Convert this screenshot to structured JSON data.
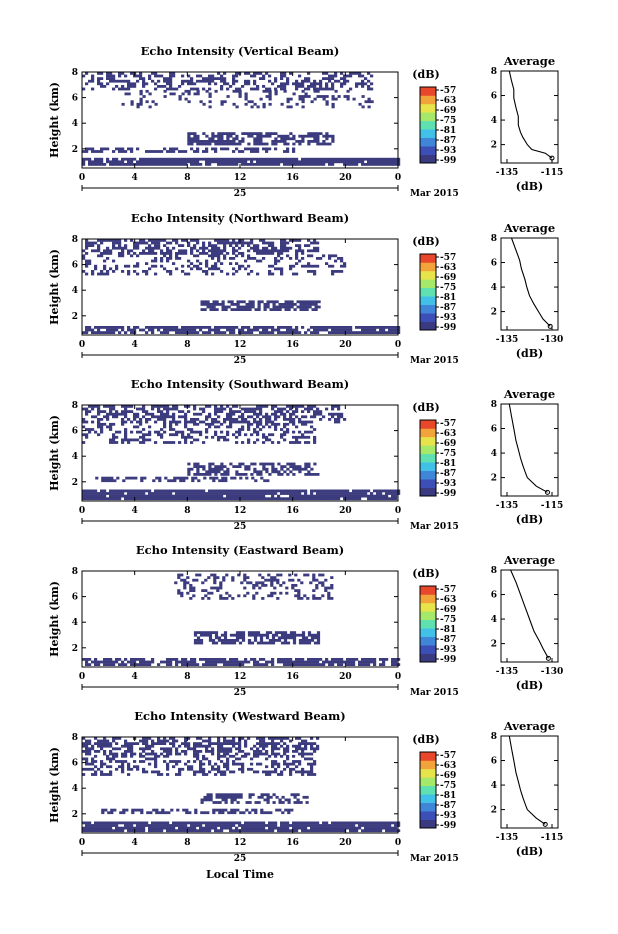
{
  "colors": {
    "echo": "#3b3b7e",
    "colorbar": [
      "#393a80",
      "#3c4fb8",
      "#3f86d8",
      "#41c1e8",
      "#5fe0b0",
      "#a6e86a",
      "#e6e44a",
      "#f2a43a",
      "#e8472b"
    ]
  },
  "shared": {
    "colorbar_unit": "(dB)",
    "colorbar_ticks": [
      "-57",
      "-63",
      "-69",
      "-75",
      "-81",
      "-87",
      "-93",
      "-99"
    ],
    "height_label": "Height (km)",
    "height_ticks": [
      "2",
      "4",
      "6",
      "8"
    ],
    "time_ticks": [
      "0",
      "4",
      "8",
      "12",
      "16",
      "20",
      "0"
    ],
    "date_day": "25",
    "date_month": "Mar 2015",
    "avg_title": "Average",
    "avg_unit": "(dB)",
    "xlabel_bottom": "Local Time"
  },
  "panels": [
    {
      "title": "Echo Intensity (Vertical Beam)",
      "avg_ticks": [
        "-135",
        "-115"
      ]
    },
    {
      "title": "Echo Intensity (Northward Beam)",
      "avg_ticks": [
        "-135",
        "-130"
      ]
    },
    {
      "title": "Echo Intensity (Southward Beam)",
      "avg_ticks": [
        "-135",
        "-115"
      ]
    },
    {
      "title": "Echo Intensity (Eastward Beam)",
      "avg_ticks": [
        "-135",
        "-130"
      ]
    },
    {
      "title": "Echo Intensity (Westward Beam)",
      "avg_ticks": [
        "-135",
        "-115"
      ]
    }
  ],
  "chart_data": [
    {
      "type": "heatmap",
      "title": "Echo Intensity (Vertical Beam)",
      "ylabel": "Height (km)",
      "xlabel": "Local Time",
      "xlim": [
        0,
        24
      ],
      "ylim": [
        0.5,
        8
      ],
      "colorbar_range": [
        -99,
        -57
      ],
      "echo_layers": [
        {
          "h": [
            0.7,
            1.3
          ],
          "t": [
            0,
            24
          ],
          "density": 0.9
        },
        {
          "h": [
            1.8,
            2.1
          ],
          "t": [
            0,
            16
          ],
          "density": 0.55
        },
        {
          "h": [
            2.4,
            3.3
          ],
          "t": [
            8,
            19
          ],
          "density": 0.6
        },
        {
          "h": [
            5.2,
            6.6
          ],
          "t": [
            3,
            22
          ],
          "density": 0.22
        },
        {
          "h": [
            6.6,
            8.0
          ],
          "t": [
            0,
            22
          ],
          "density": 0.45
        }
      ],
      "profile": {
        "x_range": [
          -135,
          -115
        ],
        "x": [
          -134,
          -133,
          -132,
          -132,
          -131,
          -130,
          -130,
          -129,
          -128,
          -126,
          -124,
          -118,
          -115
        ],
        "h": [
          8,
          7.2,
          6.5,
          5.8,
          5,
          4.3,
          3.6,
          3,
          2.6,
          2,
          1.6,
          1.3,
          0.9
        ]
      }
    },
    {
      "type": "heatmap",
      "title": "Echo Intensity (Northward Beam)",
      "ylabel": "Height (km)",
      "xlabel": "Local Time",
      "xlim": [
        0,
        24
      ],
      "ylim": [
        0.5,
        8
      ],
      "colorbar_range": [
        -99,
        -57
      ],
      "echo_layers": [
        {
          "h": [
            0.7,
            1.2
          ],
          "t": [
            0,
            24
          ],
          "density": 0.75
        },
        {
          "h": [
            2.4,
            3.2
          ],
          "t": [
            9,
            18
          ],
          "density": 0.7
        },
        {
          "h": [
            5.2,
            6.8
          ],
          "t": [
            0,
            20
          ],
          "density": 0.28
        },
        {
          "h": [
            6.8,
            8.0
          ],
          "t": [
            0,
            18
          ],
          "density": 0.5
        }
      ],
      "profile": {
        "x_range": [
          -135,
          -130
        ],
        "x": [
          -134.5,
          -134,
          -133.6,
          -133.4,
          -133,
          -132.8,
          -132.5,
          -132,
          -131.5,
          -131,
          -130.2
        ],
        "h": [
          8,
          7,
          6.2,
          5.5,
          4.6,
          4,
          3.3,
          2.6,
          2,
          1.4,
          0.8
        ]
      }
    },
    {
      "type": "heatmap",
      "title": "Echo Intensity (Southward Beam)",
      "ylabel": "Height (km)",
      "xlabel": "Local Time",
      "xlim": [
        0,
        24
      ],
      "ylim": [
        0.5,
        8
      ],
      "colorbar_range": [
        -99,
        -57
      ],
      "echo_layers": [
        {
          "h": [
            0.7,
            1.4
          ],
          "t": [
            0,
            24
          ],
          "density": 0.9
        },
        {
          "h": [
            2.0,
            2.4
          ],
          "t": [
            1,
            14
          ],
          "density": 0.5
        },
        {
          "h": [
            2.6,
            3.5
          ],
          "t": [
            8,
            18
          ],
          "density": 0.55
        },
        {
          "h": [
            5.0,
            6.6
          ],
          "t": [
            0,
            18
          ],
          "density": 0.35
        },
        {
          "h": [
            6.6,
            8.0
          ],
          "t": [
            0,
            20
          ],
          "density": 0.55
        }
      ],
      "profile": {
        "x_range": [
          -135,
          -115
        ],
        "x": [
          -134,
          -133,
          -132,
          -131,
          -130,
          -129,
          -128,
          -127,
          -126,
          -122,
          -117
        ],
        "h": [
          8,
          7,
          6,
          5,
          4.3,
          3.6,
          3,
          2.5,
          2,
          1.3,
          0.8
        ]
      }
    },
    {
      "type": "heatmap",
      "title": "Echo Intensity (Eastward Beam)",
      "ylabel": "Height (km)",
      "xlabel": "Local Time",
      "xlim": [
        0,
        24
      ],
      "ylim": [
        0.5,
        8
      ],
      "colorbar_range": [
        -99,
        -57
      ],
      "echo_layers": [
        {
          "h": [
            0.7,
            1.2
          ],
          "t": [
            0,
            24
          ],
          "density": 0.75
        },
        {
          "h": [
            2.3,
            3.3
          ],
          "t": [
            8.5,
            18
          ],
          "density": 0.7
        },
        {
          "h": [
            5.8,
            7.8
          ],
          "t": [
            7,
            19
          ],
          "density": 0.28
        }
      ],
      "profile": {
        "x_range": [
          -135,
          -130
        ],
        "x": [
          -134.6,
          -134,
          -133.6,
          -133.2,
          -132.8,
          -132.4,
          -132,
          -131.4,
          -131,
          -130.4
        ],
        "h": [
          8,
          7,
          6.2,
          5.4,
          4.6,
          3.8,
          3,
          2.2,
          1.6,
          0.8
        ]
      }
    },
    {
      "type": "heatmap",
      "title": "Echo Intensity (Westward Beam)",
      "ylabel": "Height (km)",
      "xlabel": "Local Time",
      "xlim": [
        0,
        24
      ],
      "ylim": [
        0.5,
        8
      ],
      "colorbar_range": [
        -99,
        -57
      ],
      "echo_layers": [
        {
          "h": [
            0.7,
            1.4
          ],
          "t": [
            0,
            24
          ],
          "density": 0.9
        },
        {
          "h": [
            2.0,
            2.4
          ],
          "t": [
            1,
            16
          ],
          "density": 0.5
        },
        {
          "h": [
            2.8,
            3.6
          ],
          "t": [
            9,
            17
          ],
          "density": 0.55
        },
        {
          "h": [
            5.0,
            6.6
          ],
          "t": [
            0,
            18
          ],
          "density": 0.38
        },
        {
          "h": [
            6.6,
            8.0
          ],
          "t": [
            0,
            18
          ],
          "density": 0.55
        }
      ],
      "profile": {
        "x_range": [
          -135,
          -115
        ],
        "x": [
          -134,
          -133,
          -132,
          -131,
          -130,
          -129,
          -128,
          -127,
          -126,
          -122,
          -118
        ],
        "h": [
          8,
          7,
          6,
          5,
          4.3,
          3.6,
          3,
          2.5,
          2,
          1.3,
          0.8
        ]
      }
    }
  ]
}
